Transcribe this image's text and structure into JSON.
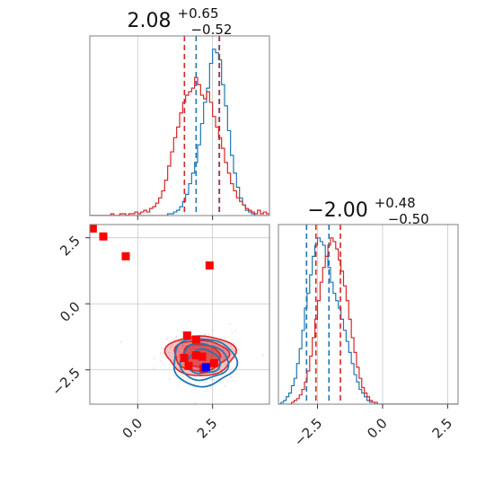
{
  "colors": {
    "blue": "#1f77b4",
    "red": "#d62728",
    "red_fill": "#e8888a",
    "marker_red": "#ff0000",
    "marker_blue": "#0000ff",
    "frame": "#7f7f7f",
    "grid": "#c8c8c8"
  },
  "chart_data": [
    {
      "id": "hist_p1",
      "type": "histogram",
      "title": {
        "value": "2.08",
        "sup": "+0.65",
        "sub": "−0.52"
      },
      "xlim": [
        -1.6,
        4.4
      ],
      "grid": true,
      "gridlines_x": [
        0.0,
        2.5
      ],
      "series": [
        {
          "name": "",
          "color": "#1f77b4",
          "bin_edges_start": -1.6,
          "bin_width": 0.1,
          "counts": [
            0,
            0,
            0,
            0,
            0,
            0,
            0,
            0,
            0,
            0,
            0,
            0,
            0,
            0,
            0,
            0,
            0,
            0,
            0,
            0,
            0,
            0,
            0,
            0,
            0,
            0,
            1,
            1,
            2,
            3,
            5,
            8,
            12,
            18,
            24,
            30,
            40,
            52,
            64,
            72,
            86,
            94,
            92,
            88,
            74,
            62,
            48,
            34,
            24,
            16,
            10,
            6,
            3,
            2,
            1,
            0,
            0,
            0,
            0,
            0
          ],
          "quantiles": [
            1.95,
            2.72
          ]
        },
        {
          "name": "",
          "color": "#d62728",
          "bin_edges_start": -1.6,
          "bin_width": 0.1,
          "counts": [
            0,
            0,
            0,
            0,
            0,
            0,
            0,
            1,
            0,
            0,
            1,
            1,
            0,
            1,
            1,
            2,
            1,
            2,
            3,
            2,
            4,
            5,
            7,
            10,
            14,
            20,
            28,
            36,
            44,
            50,
            58,
            64,
            68,
            70,
            72,
            78,
            74,
            68,
            66,
            70,
            64,
            56,
            50,
            44,
            38,
            30,
            24,
            18,
            14,
            10,
            8,
            6,
            4,
            3,
            2,
            1,
            3,
            1,
            2,
            1
          ],
          "quantiles": [
            1.56,
            2.73
          ]
        }
      ]
    },
    {
      "id": "hist_p2",
      "type": "histogram",
      "title": {
        "value": "−2.00",
        "sup": "+0.48",
        "sub": "−0.50"
      },
      "xlim": [
        -4.0,
        2.9
      ],
      "xticks": [
        -2.5,
        0.0,
        2.5
      ],
      "xtick_labels": [
        "−2.5",
        "0.0",
        "2.5"
      ],
      "grid": true,
      "series": [
        {
          "name": "",
          "color": "#1f77b4",
          "bin_edges_start": -4.0,
          "bin_width": 0.1,
          "counts": [
            0,
            1,
            2,
            4,
            6,
            10,
            14,
            22,
            30,
            40,
            52,
            60,
            70,
            80,
            86,
            90,
            88,
            86,
            80,
            74,
            66,
            60,
            56,
            52,
            46,
            40,
            34,
            28,
            22,
            16,
            12,
            8,
            6,
            4,
            2,
            1,
            1,
            0,
            0,
            0,
            0,
            0,
            0,
            0,
            0,
            0,
            0,
            0,
            0,
            0,
            0,
            0,
            0,
            0,
            0,
            0,
            0,
            0,
            0,
            0,
            0,
            0,
            0,
            0,
            0,
            0,
            0,
            0,
            0
          ],
          "quantiles": [
            -2.92,
            -2.06
          ]
        },
        {
          "name": "",
          "color": "#d62728",
          "bin_edges_start": -4.0,
          "bin_width": 0.1,
          "counts": [
            0,
            0,
            0,
            0,
            0,
            1,
            2,
            3,
            5,
            8,
            12,
            18,
            26,
            36,
            46,
            56,
            66,
            74,
            80,
            86,
            90,
            88,
            84,
            78,
            72,
            64,
            56,
            46,
            36,
            28,
            20,
            14,
            9,
            6,
            4,
            2,
            1,
            1,
            0,
            0,
            0,
            0,
            0,
            0,
            0,
            0,
            0,
            0,
            0,
            0,
            0,
            0,
            0,
            0,
            0,
            0,
            0,
            0,
            0,
            0,
            0,
            0,
            0,
            0,
            0,
            0,
            0,
            0,
            0
          ],
          "quantiles": [
            -2.56,
            -1.62
          ]
        }
      ]
    },
    {
      "id": "scatter_p1p2",
      "type": "scatter",
      "xlim": [
        -1.6,
        4.4
      ],
      "ylim": [
        -3.8,
        3.0
      ],
      "xticks": [
        0.0,
        2.5
      ],
      "xtick_labels": [
        "0.0",
        "2.5"
      ],
      "yticks": [
        -2.5,
        0.0,
        2.5
      ],
      "ytick_labels": [
        "−2.5",
        "0.0",
        "2.5"
      ],
      "grid": true,
      "contours": [
        {
          "color": "#d62728",
          "center": [
            2.1,
            -1.95
          ],
          "radii": [
            [
              1.15,
              0.75
            ],
            [
              0.9,
              0.58
            ],
            [
              0.62,
              0.42
            ]
          ],
          "filled": true
        },
        {
          "color": "#1f77b4",
          "center": [
            2.2,
            -2.2
          ],
          "radii": [
            [
              1.05,
              0.9
            ],
            [
              0.8,
              0.68
            ],
            [
              0.55,
              0.45
            ]
          ],
          "filled": false
        }
      ],
      "markers": [
        {
          "color": "#ff0000",
          "points": [
            [
              -1.5,
              2.85
            ],
            [
              -1.15,
              2.55
            ],
            [
              -0.4,
              1.8
            ],
            [
              2.4,
              1.45
            ],
            [
              1.65,
              -1.2
            ],
            [
              1.95,
              -1.35
            ],
            [
              1.55,
              -2.05
            ],
            [
              1.95,
              -1.95
            ],
            [
              2.15,
              -2.0
            ],
            [
              2.55,
              -2.25
            ],
            [
              1.7,
              -2.35
            ],
            [
              2.2,
              -2.45
            ]
          ]
        },
        {
          "color": "#0000ff",
          "points": [
            [
              2.28,
              -2.4
            ]
          ]
        }
      ]
    }
  ]
}
